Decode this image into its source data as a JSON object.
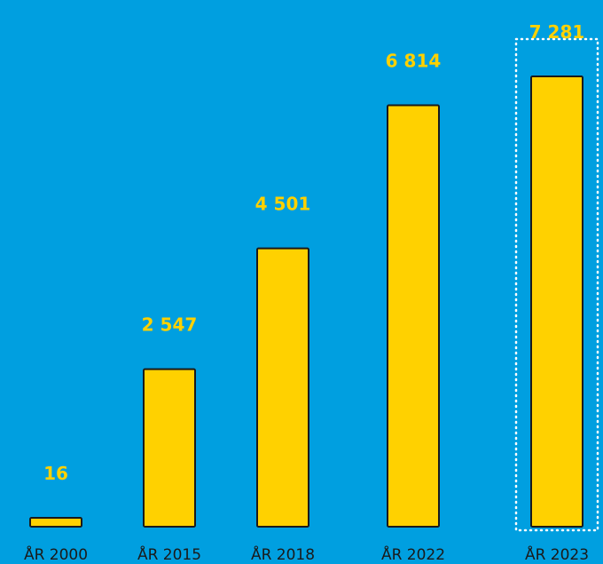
{
  "chart_data": {
    "type": "bar",
    "categories": [
      "ÅR 2000",
      "ÅR 2015",
      "ÅR 2018",
      "ÅR 2022",
      "ÅR 2023"
    ],
    "values": [
      16,
      2547,
      4501,
      6814,
      7281
    ],
    "value_labels": [
      "16",
      "2 547",
      "4 501",
      "6 814",
      "7 281"
    ],
    "highlighted_category": "ÅR 2023",
    "ylim": [
      0,
      7500
    ],
    "grid": false,
    "title": "",
    "xlabel": "",
    "ylabel": ""
  },
  "colors": {
    "background": "#009fe0",
    "bar": "#ffd100",
    "bar_outline": "#1a1a1a",
    "value_label": "#ffd100",
    "category_label": "#1a1a1a",
    "highlight_outline": "#ffffff"
  }
}
